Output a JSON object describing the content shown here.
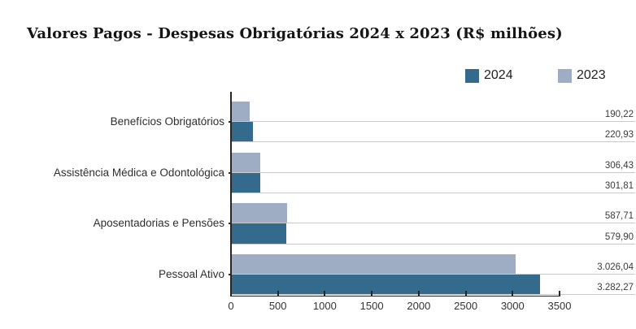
{
  "title": "Valores Pagos - Despesas Obrigatórias 2024 x 2023 (R$ milhões)",
  "legend": {
    "items": [
      {
        "label": "2024",
        "color": "#346b8c"
      },
      {
        "label": "2023",
        "color": "#9fadc4"
      }
    ]
  },
  "chart_data": {
    "type": "bar",
    "orientation": "horizontal",
    "title": "Valores Pagos - Despesas Obrigatórias 2024 x 2023 (R$ milhões)",
    "categories": [
      "Benefícios Obrigatórios",
      "Assistência Médica e Odontológica",
      "Aposentadorias e Pensões",
      "Pessoal Ativo"
    ],
    "series": [
      {
        "name": "2024",
        "color": "#346b8c",
        "row_in_group": 1,
        "values": [
          220.93,
          301.81,
          579.9,
          3282.27
        ],
        "value_labels": [
          "220,93",
          "301,81",
          "579,90",
          "3.282,27"
        ]
      },
      {
        "name": "2023",
        "color": "#9fadc4",
        "row_in_group": 0,
        "values": [
          190.22,
          306.43,
          587.71,
          3026.04
        ],
        "value_labels": [
          "190,22",
          "306,43",
          "587,71",
          "3.026,04"
        ]
      }
    ],
    "xlim": [
      0,
      3500
    ],
    "x_tick_labels": [
      "0",
      "500",
      "1000",
      "1500",
      "2000",
      "2500",
      "3000",
      "3500"
    ],
    "x_tick_values": [
      0,
      500,
      1000,
      1500,
      2000,
      2500,
      3000,
      3500
    ],
    "legend_position": "top-right",
    "grid": false,
    "value_leader_lines": true
  },
  "colors": {
    "axis": "#262626",
    "leader_line": "#c9c9c9",
    "background": "#ffffff"
  }
}
